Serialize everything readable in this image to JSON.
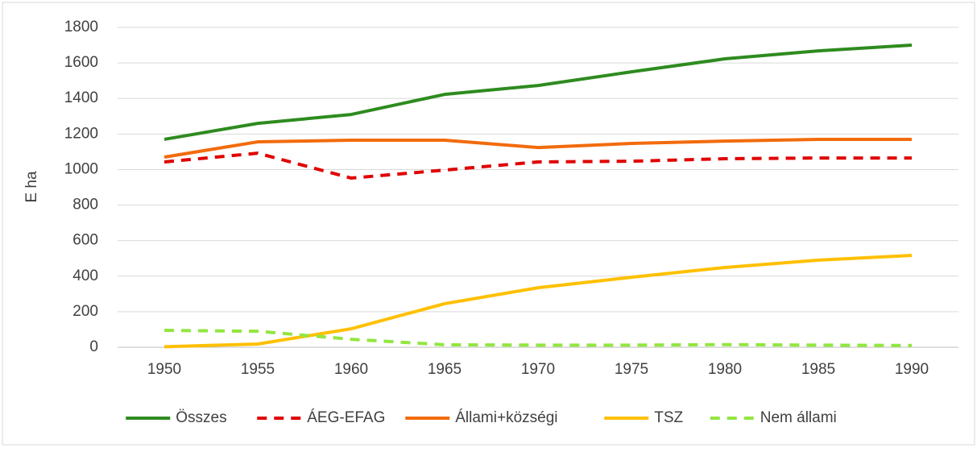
{
  "chart_data": {
    "type": "line",
    "ylabel": "E ha",
    "x": [
      1950,
      1955,
      1960,
      1965,
      1970,
      1975,
      1980,
      1985,
      1990
    ],
    "xlim": [
      1947.5,
      1992.5
    ],
    "xticks": [
      1950,
      1955,
      1960,
      1965,
      1970,
      1975,
      1980,
      1985,
      1990
    ],
    "ylim": [
      0,
      1800
    ],
    "yticks": [
      0,
      200,
      400,
      600,
      800,
      1000,
      1200,
      1400,
      1600,
      1800
    ],
    "grid": true,
    "legend": "bottom",
    "series": [
      {
        "name": "Összes",
        "color": "#2e8b1f",
        "dashed": false,
        "values": [
          1170,
          1260,
          1310,
          1423,
          1473,
          1550,
          1623,
          1668,
          1700
        ]
      },
      {
        "name": "ÁEG-EFAG",
        "color": "#e00000",
        "dashed": true,
        "values": [
          1043,
          1092,
          952,
          997,
          1043,
          1047,
          1061,
          1065,
          1065
        ]
      },
      {
        "name": "Állami+községi",
        "color": "#f26b0c",
        "dashed": false,
        "values": [
          1070,
          1156,
          1165,
          1165,
          1124,
          1147,
          1160,
          1170,
          1170
        ]
      },
      {
        "name": "TSZ",
        "color": "#ffc000",
        "dashed": false,
        "values": [
          3,
          18,
          104,
          245,
          335,
          394,
          449,
          490,
          517
        ]
      },
      {
        "name": "Nem állami",
        "color": "#92e640",
        "dashed": true,
        "values": [
          95,
          90,
          45,
          14,
          12,
          12,
          15,
          12,
          10
        ]
      }
    ]
  }
}
